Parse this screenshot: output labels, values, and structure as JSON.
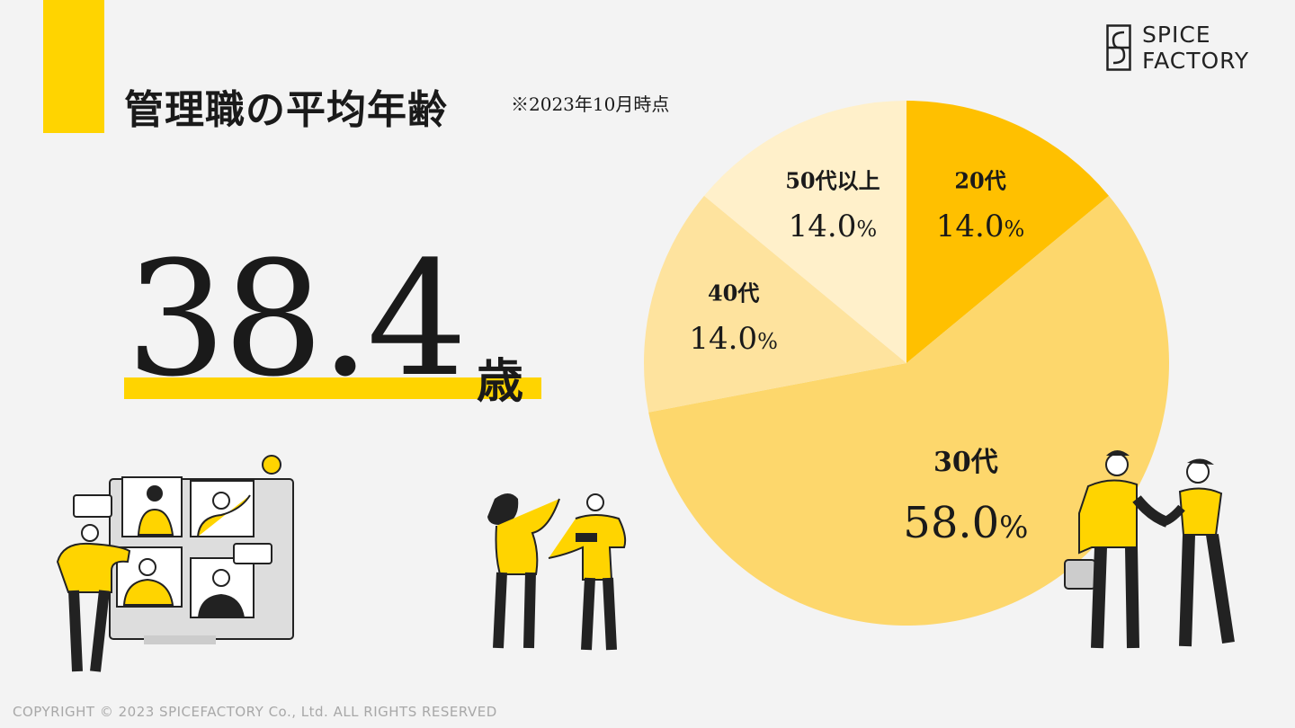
{
  "title": "管理職の平均年齢",
  "note": "※2023年10月時点",
  "logo": {
    "line1": "SPICE",
    "line2": "FACTORY"
  },
  "highlight": {
    "value": "38.4",
    "unit": "歳"
  },
  "copyright": "COPYRIGHT © 2023 SPICEFACTORY Co., Ltd.   ALL RIGHTS RESERVED",
  "colors": {
    "accent": "#ffd400",
    "background": "#f3f3f3"
  },
  "chart_data": {
    "type": "pie",
    "title": "",
    "slices": [
      {
        "label": "20代",
        "display": "14.0",
        "unit": "%",
        "value": 14.0,
        "color": "#ffc000"
      },
      {
        "label": "30代",
        "display": "58.0",
        "unit": "%",
        "value": 58.0,
        "color": "#fdd76c"
      },
      {
        "label": "40代",
        "display": "14.0",
        "unit": "%",
        "value": 14.0,
        "color": "#fee39e"
      },
      {
        "label": "50代以上",
        "display": "14.0",
        "unit": "%",
        "value": 14.0,
        "color": "#fff0ca"
      }
    ]
  }
}
